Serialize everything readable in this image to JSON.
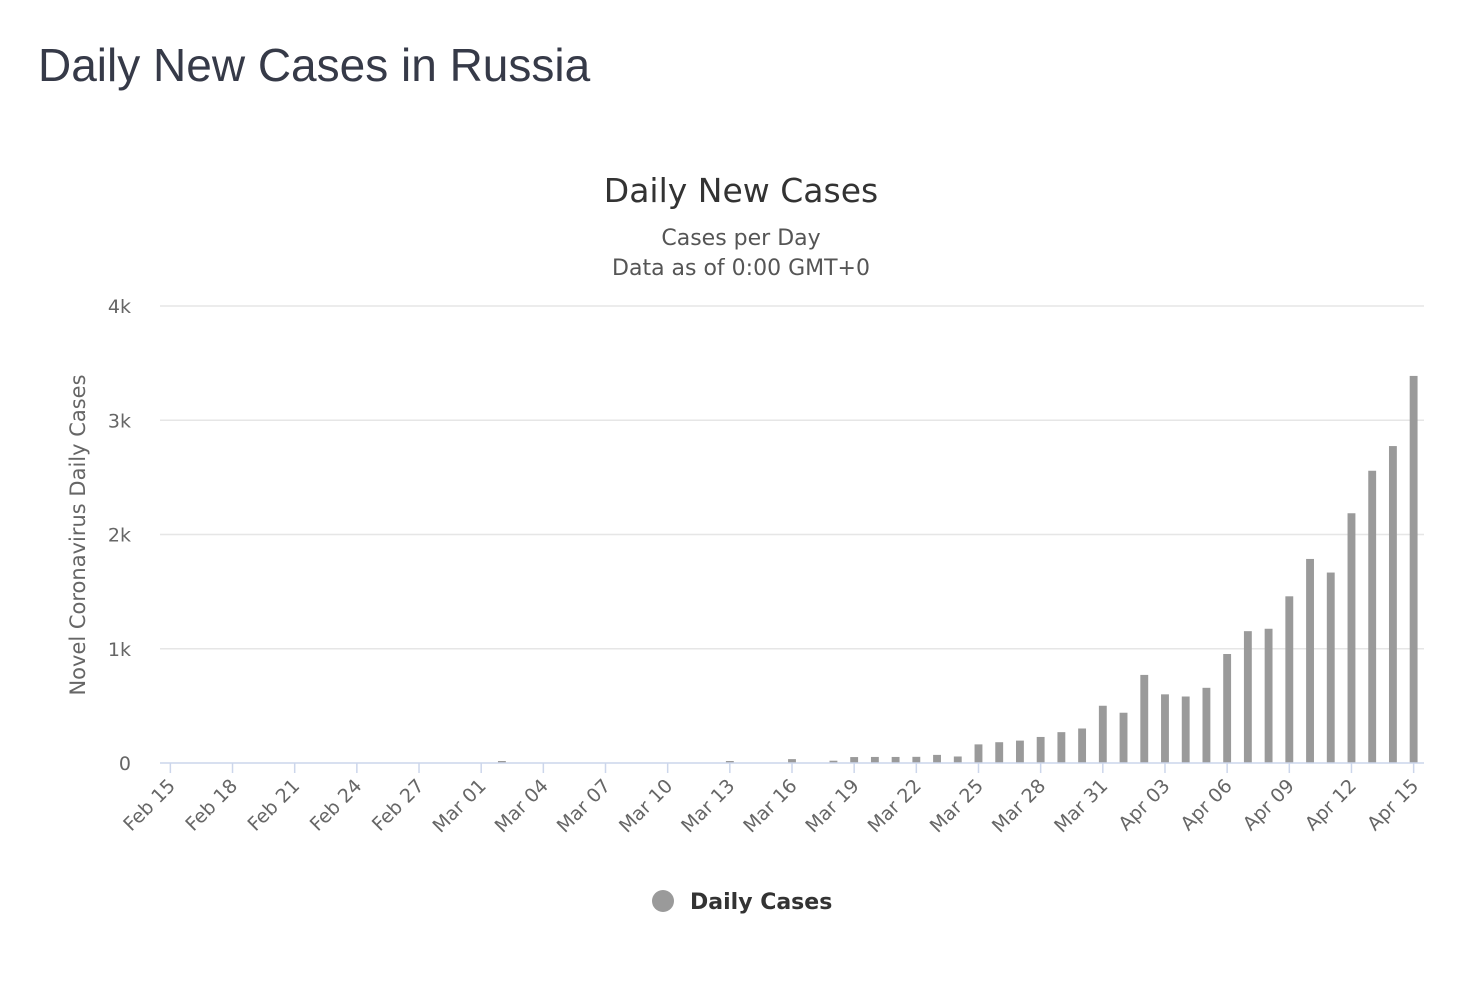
{
  "page": {
    "heading": "Daily New Cases in Russia"
  },
  "colors": {
    "bar": "#9a9a9a",
    "heading": "#363a48"
  },
  "chart_data": {
    "type": "bar",
    "title": "Daily New Cases",
    "subtitle": [
      "Cases per Day",
      "Data as of 0:00 GMT+0"
    ],
    "xlabel": "",
    "ylabel": "Novel Coronavirus Daily Cases",
    "ylim": [
      0,
      4000
    ],
    "yticks": [
      0,
      1000,
      2000,
      3000,
      4000
    ],
    "ytick_labels": [
      "0",
      "1k",
      "2k",
      "3k",
      "4k"
    ],
    "grid": true,
    "legend": "bottom-center",
    "xtick_labels": [
      "Feb 15",
      "Feb 18",
      "Feb 21",
      "Feb 24",
      "Feb 27",
      "Mar 01",
      "Mar 04",
      "Mar 07",
      "Mar 10",
      "Mar 13",
      "Mar 16",
      "Mar 19",
      "Mar 22",
      "Mar 25",
      "Mar 28",
      "Mar 31",
      "Apr 03",
      "Apr 06",
      "Apr 09",
      "Apr 12",
      "Apr 15"
    ],
    "categories": [
      "Feb 15",
      "Feb 16",
      "Feb 17",
      "Feb 18",
      "Feb 19",
      "Feb 20",
      "Feb 21",
      "Feb 22",
      "Feb 23",
      "Feb 24",
      "Feb 25",
      "Feb 26",
      "Feb 27",
      "Feb 28",
      "Feb 29",
      "Mar 01",
      "Mar 02",
      "Mar 03",
      "Mar 04",
      "Mar 05",
      "Mar 06",
      "Mar 07",
      "Mar 08",
      "Mar 09",
      "Mar 10",
      "Mar 11",
      "Mar 12",
      "Mar 13",
      "Mar 14",
      "Mar 15",
      "Mar 16",
      "Mar 17",
      "Mar 18",
      "Mar 19",
      "Mar 20",
      "Mar 21",
      "Mar 22",
      "Mar 23",
      "Mar 24",
      "Mar 25",
      "Mar 26",
      "Mar 27",
      "Mar 28",
      "Mar 29",
      "Mar 30",
      "Mar 31",
      "Apr 01",
      "Apr 02",
      "Apr 03",
      "Apr 04",
      "Apr 05",
      "Apr 06",
      "Apr 07",
      "Apr 08",
      "Apr 09",
      "Apr 10",
      "Apr 11",
      "Apr 12",
      "Apr 13",
      "Apr 14",
      "Apr 15"
    ],
    "series": [
      {
        "name": "Daily Cases",
        "color": "#9a9a9a",
        "values": [
          0,
          0,
          0,
          0,
          0,
          0,
          0,
          0,
          0,
          0,
          0,
          0,
          0,
          0,
          0,
          0,
          2,
          0,
          0,
          0,
          0,
          0,
          0,
          0,
          0,
          0,
          0,
          6,
          0,
          0,
          34,
          0,
          20,
          52,
          53,
          53,
          54,
          71,
          57,
          163,
          182,
          196,
          228,
          270,
          302,
          501,
          440,
          771,
          601,
          582,
          658,
          954,
          1154,
          1175,
          1459,
          1786,
          1667,
          2186,
          2558,
          2774,
          3388
        ]
      }
    ]
  }
}
